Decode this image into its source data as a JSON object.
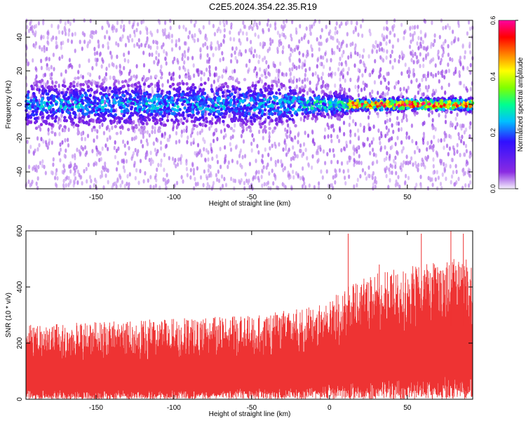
{
  "title": "C2E5.2024.354.22.35.R19",
  "chart_data": [
    {
      "type": "heatmap",
      "xlabel": "Height of straight line (km)",
      "ylabel": "Frequency (Hz)",
      "xlim": [
        -195,
        92
      ],
      "ylim": [
        -50,
        50
      ],
      "xticks": [
        -150,
        -100,
        -50,
        0,
        50
      ],
      "yticks": [
        -40,
        -20,
        0,
        20,
        40
      ],
      "colorbar": {
        "label": "Normalized spectral amplitude",
        "range": [
          0.0,
          0.6
        ],
        "ticks": [
          0.0,
          0.2,
          0.4,
          0.6
        ],
        "colors": [
          "#f4eefc",
          "#8a2be2",
          "#3010ff",
          "#00c0ff",
          "#00ff90",
          "#80ff00",
          "#ffff00",
          "#ff8000",
          "#ff0000",
          "#ff00a0"
        ]
      },
      "bands": [
        {
          "x_from": -195,
          "x_to": -20,
          "center_hz": 0,
          "halfwidth_hz": 10,
          "peak_amplitude": 0.25
        },
        {
          "x_from": -20,
          "x_to": 12,
          "center_hz": 0,
          "halfwidth_hz": 6,
          "peak_amplitude": 0.3
        },
        {
          "x_from": 12,
          "x_to": 92,
          "center_hz": 0,
          "halfwidth_hz": 3,
          "peak_amplitude": 0.55
        }
      ]
    },
    {
      "type": "area",
      "xlabel": "Height of straight line (km)",
      "ylabel": "SNR (10 * v/v)",
      "xlim": [
        -195,
        92
      ],
      "ylim": [
        0,
        600
      ],
      "xticks": [
        -150,
        -100,
        -50,
        0,
        50
      ],
      "yticks": [
        0,
        200,
        400,
        600
      ],
      "color": "#ee3333",
      "envelope": {
        "x": [
          -195,
          -150,
          -100,
          -50,
          -20,
          0,
          15,
          30,
          50,
          70,
          92
        ],
        "lower": [
          30,
          30,
          30,
          35,
          40,
          50,
          55,
          60,
          70,
          75,
          80
        ],
        "upper": [
          230,
          240,
          250,
          260,
          280,
          320,
          360,
          390,
          410,
          430,
          440
        ]
      },
      "spikes": [
        {
          "x": 12,
          "y": 590
        },
        {
          "x": 59,
          "y": 590
        },
        {
          "x": 78,
          "y": 600
        },
        {
          "x": 86,
          "y": 590
        },
        {
          "x": 32,
          "y": 480
        }
      ]
    }
  ]
}
